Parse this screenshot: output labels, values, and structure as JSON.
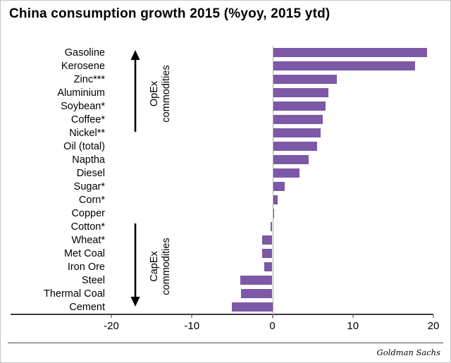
{
  "title": "China consumption growth 2015 (%yoy, 2015 ytd)",
  "chart_data": {
    "type": "bar",
    "orientation": "horizontal",
    "title": "China consumption growth 2015 (%yoy, 2015 ytd)",
    "categories": [
      "Gasoline",
      "Kerosene",
      "Zinc***",
      "Aluminium",
      "Soybean*",
      "Coffee*",
      "Nickel**",
      "Oil (total)",
      "Naptha",
      "Diesel",
      "Sugar*",
      "Corn*",
      "Copper",
      "Cotton*",
      "Wheat*",
      "Met Coal",
      "Iron Ore",
      "Steel",
      "Thermal Coal",
      "Cement"
    ],
    "values": [
      19.2,
      17.7,
      8.0,
      7.0,
      6.6,
      6.3,
      6.0,
      5.6,
      4.5,
      3.4,
      1.5,
      0.7,
      0.2,
      -0.2,
      -1.3,
      -1.3,
      -1.0,
      -4.0,
      -3.9,
      -5.0
    ],
    "xlim": [
      -20,
      20
    ],
    "xticks": [
      -20,
      -10,
      0,
      10,
      20
    ],
    "bar_color": "#7D58A6",
    "grid": false,
    "legend": "none",
    "annotations": [
      {
        "text_line1": "OpEx",
        "text_line2": "commodities",
        "arrow": "up",
        "group": "top"
      },
      {
        "text_line1": "CapEx",
        "text_line2": "commodities",
        "arrow": "down",
        "group": "bottom"
      }
    ]
  },
  "footer": {
    "brand": "Goldman Sachs"
  }
}
